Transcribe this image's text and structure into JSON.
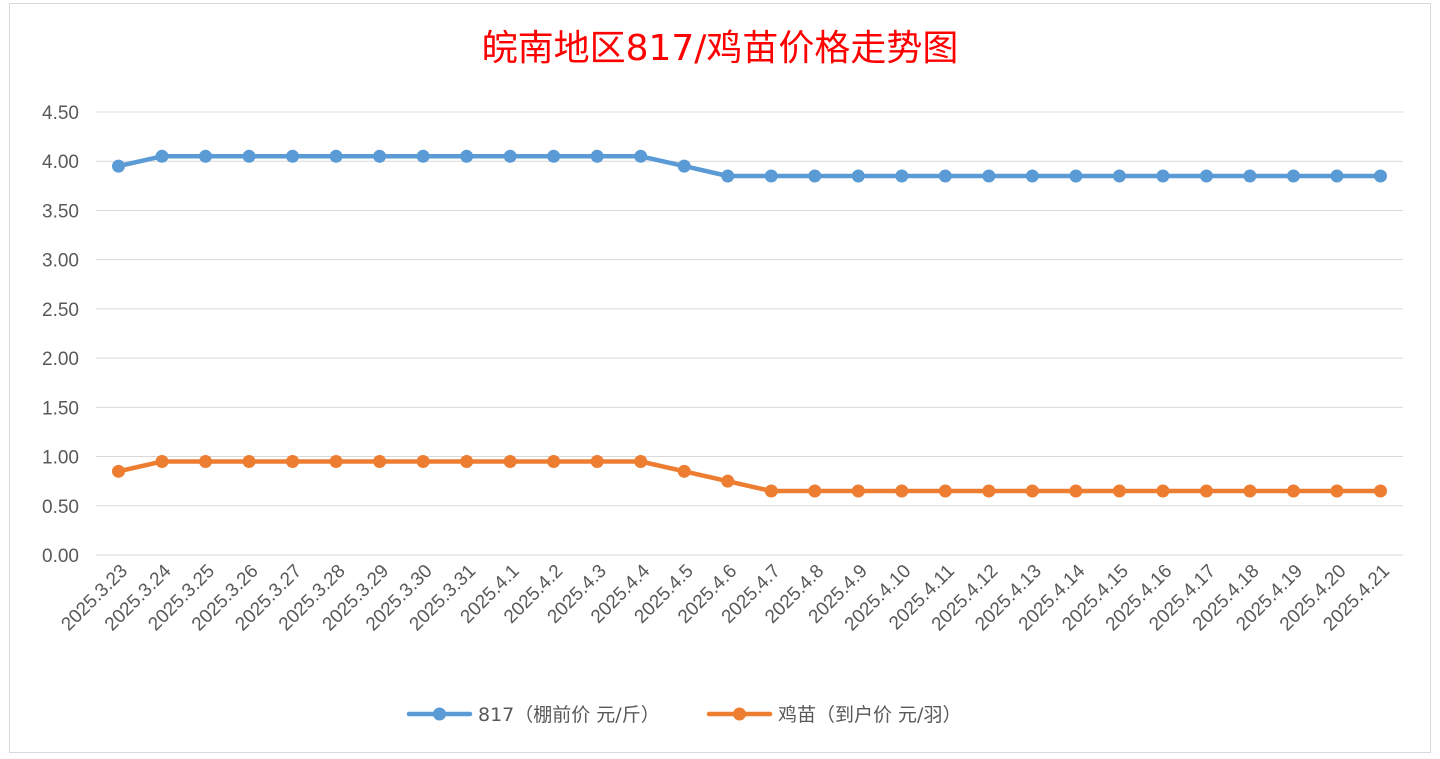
{
  "chart_data": {
    "type": "line",
    "title": "皖南地区817/鸡苗价格走势图",
    "categories": [
      "2025.3.23",
      "2025.3.24",
      "2025.3.25",
      "2025.3.26",
      "2025.3.27",
      "2025.3.28",
      "2025.3.29",
      "2025.3.30",
      "2025.3.31",
      "2025.4.1",
      "2025.4.2",
      "2025.4.3",
      "2025.4.4",
      "2025.4.5",
      "2025.4.6",
      "2025.4.7",
      "2025.4.8",
      "2025.4.9",
      "2025.4.10",
      "2025.4.11",
      "2025.4.12",
      "2025.4.13",
      "2025.4.14",
      "2025.4.15",
      "2025.4.16",
      "2025.4.17",
      "2025.4.18",
      "2025.4.19",
      "2025.4.20",
      "2025.4.21"
    ],
    "series": [
      {
        "name": "817（棚前价 元/斤）",
        "color": "#5b9bd5",
        "values": [
          3.95,
          4.05,
          4.05,
          4.05,
          4.05,
          4.05,
          4.05,
          4.05,
          4.05,
          4.05,
          4.05,
          4.05,
          4.05,
          3.95,
          3.85,
          3.85,
          3.85,
          3.85,
          3.85,
          3.85,
          3.85,
          3.85,
          3.85,
          3.85,
          3.85,
          3.85,
          3.85,
          3.85,
          3.85,
          3.85
        ]
      },
      {
        "name": "鸡苗（到户价 元/羽）",
        "color": "#ed7d31",
        "values": [
          0.85,
          0.95,
          0.95,
          0.95,
          0.95,
          0.95,
          0.95,
          0.95,
          0.95,
          0.95,
          0.95,
          0.95,
          0.95,
          0.85,
          0.75,
          0.65,
          0.65,
          0.65,
          0.65,
          0.65,
          0.65,
          0.65,
          0.65,
          0.65,
          0.65,
          0.65,
          0.65,
          0.65,
          0.65,
          0.65
        ]
      }
    ],
    "y_ticks": [
      "0.00",
      "0.50",
      "1.00",
      "1.50",
      "2.00",
      "2.50",
      "3.00",
      "3.50",
      "4.00",
      "4.50"
    ],
    "ylim": [
      0,
      4.5
    ],
    "grid": true,
    "legend_position": "bottom"
  }
}
